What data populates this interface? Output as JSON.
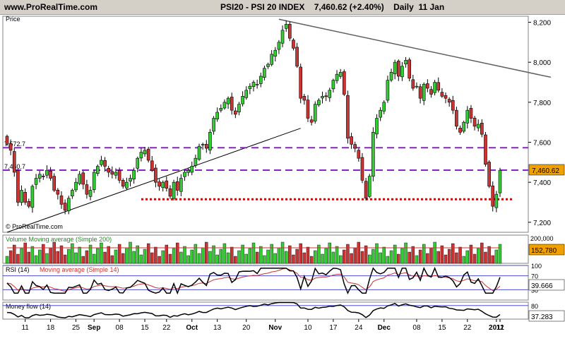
{
  "header": {
    "site": "www.ProRealTime.com",
    "title": "PSI20 - PSI 20 INDEX    7,460.62 (+2.40%)    Daily  11 Jan"
  },
  "colors": {
    "up": "#33cc33",
    "down": "#cc3333",
    "resistance": "#8822cc",
    "support": "#dd0000",
    "trendline": "#606060",
    "last_price_box": "#f0a000",
    "volume_box": "#f0a000",
    "volume_ma": "#cc3333",
    "rsi_line": "#000000",
    "rsi_ma": "#cc3333",
    "mfi_line": "#000000"
  },
  "chart_data": [
    {
      "type": "candlestick",
      "panel": "price",
      "ylabel": "Price",
      "ylim": [
        7150,
        8230
      ],
      "yticks": [
        "7,200",
        "7,400",
        "7,600",
        "7,800",
        "8,000",
        "8,200"
      ],
      "last_price_label": "7,460.62",
      "level_labels": [
        "7,572.7",
        "7,460.7"
      ],
      "levels": [
        {
          "value": 7572.7,
          "style": "dashed"
        },
        {
          "value": 7460.7,
          "style": "dashed"
        },
        {
          "value": 7315,
          "style": "dotted"
        }
      ],
      "trendlines": [
        {
          "from": [
            0,
            7150
          ],
          "to": [
            81,
            7670
          ]
        },
        {
          "from": [
            75,
            8215
          ],
          "to": [
            150,
            7925
          ]
        }
      ],
      "xticks": [
        "11",
        "18",
        "25",
        "Sep",
        "08",
        "15",
        "22",
        "Oct",
        "13",
        "20",
        "Nov",
        "10",
        "17",
        "24",
        "Dec",
        "08",
        "15",
        "22",
        "2011",
        "12"
      ],
      "watermark": "© ProRealTime.com",
      "ohlc_close": [
        7590,
        7560,
        7450,
        7300,
        7360,
        7300,
        7280,
        7380,
        7420,
        7440,
        7430,
        7460,
        7420,
        7360,
        7340,
        7290,
        7260,
        7320,
        7360,
        7400,
        7440,
        7390,
        7340,
        7360,
        7450,
        7480,
        7510,
        7480,
        7450,
        7440,
        7450,
        7410,
        7380,
        7400,
        7420,
        7460,
        7520,
        7550,
        7560,
        7510,
        7460,
        7400,
        7380,
        7400,
        7370,
        7330,
        7400,
        7360,
        7420,
        7450,
        7460,
        7480,
        7520,
        7580,
        7590,
        7570,
        7650,
        7720,
        7750,
        7770,
        7800,
        7820,
        7760,
        7740,
        7790,
        7830,
        7860,
        7880,
        7900,
        7890,
        7930,
        7970,
        7990,
        8040,
        8060,
        8100,
        8160,
        8190,
        8120,
        8070,
        7980,
        7820,
        7810,
        7720,
        7700,
        7790,
        7810,
        7830,
        7830,
        7860,
        7910,
        7940,
        7950,
        7840,
        7620,
        7590,
        7570,
        7520,
        7410,
        7320,
        7430,
        7650,
        7720,
        7760,
        7800,
        7910,
        7950,
        8000,
        7930,
        7980,
        8010,
        7920,
        7870,
        7880,
        7820,
        7890,
        7870,
        7840,
        7900,
        7860,
        7830,
        7820,
        7800,
        7760,
        7680,
        7650,
        7700,
        7760,
        7720,
        7680,
        7690,
        7640,
        7490,
        7380,
        7280,
        7340,
        7460
      ],
      "volume_ylabel": "Volume  Moving average (Simple 200)",
      "volume_value_label": "152,780",
      "volume_scale_label": "200,000",
      "rsi_label": "RSI (14)",
      "rsi_ma_label": "Moving average (Simple 14)",
      "rsi_ticks": [
        "100",
        "70",
        "30"
      ],
      "rsi_value_label": "39.666",
      "rsi_levels": [
        100,
        70,
        30
      ],
      "mfi_label": "Money flow (14)",
      "mfi_ticks": [
        "80"
      ],
      "mfi_value_label": "37.283",
      "mfi_levels": [
        80
      ]
    }
  ]
}
